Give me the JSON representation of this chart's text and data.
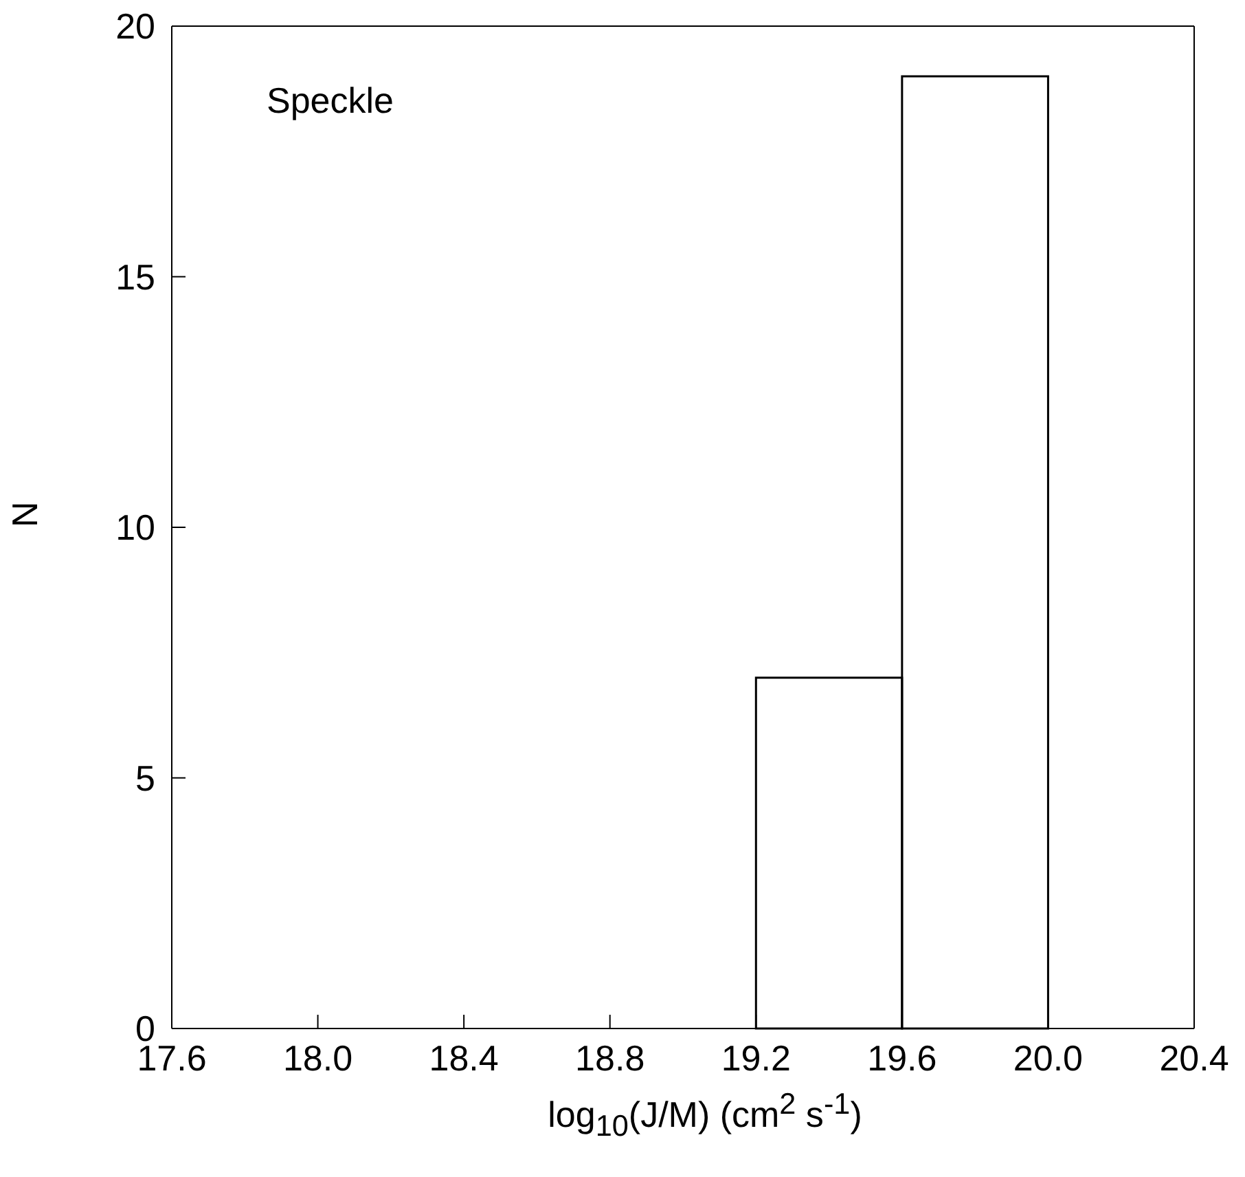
{
  "chart_data": {
    "type": "histogram",
    "xlabel": "log$_{10}$(J/M) (cm$^{2}$ s$^{-1}$)",
    "ylabel": "N",
    "bins": [
      17.6,
      18.0,
      18.4,
      18.8,
      19.2,
      19.6,
      20.0,
      20.4
    ],
    "values": [
      0,
      0,
      0,
      0,
      7,
      19,
      0
    ],
    "color": "#000000",
    "xlim": [
      17.6,
      20.4
    ],
    "xticks": [
      {
        "value": 17.6,
        "label": "17.6"
      },
      {
        "value": 18.0,
        "label": "18.0"
      },
      {
        "value": 18.4,
        "label": "18.4"
      },
      {
        "value": 18.8,
        "label": "18.8"
      },
      {
        "value": 19.2,
        "label": "19.2"
      },
      {
        "value": 19.6,
        "label": "19.6"
      },
      {
        "value": 20.0,
        "label": "20.0"
      },
      {
        "value": 20.4,
        "label": "20.4"
      }
    ],
    "ylim": [
      0,
      20
    ],
    "yticks": [
      0,
      5,
      10,
      15,
      20
    ],
    "annotations": [
      "Speckle"
    ]
  }
}
